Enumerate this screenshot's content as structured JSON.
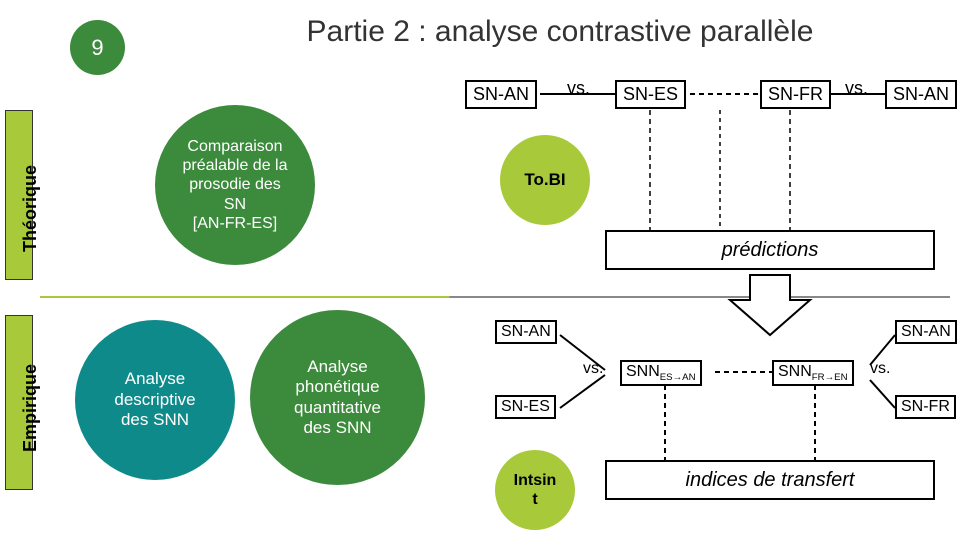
{
  "colors": {
    "darkgreen": "#3c8a3c",
    "limegreen": "#a8c93a",
    "teal": "#0f8a8a",
    "black": "#000000",
    "white": "#ffffff"
  },
  "page_number": "9",
  "title": "Partie 2 : analyse contrastive parallèle",
  "sidebar_labels": {
    "theorique": "Théorique",
    "empirique": "Empirique"
  },
  "circles": {
    "comparison": "Comparaison\npréalable de la\nprosodie des\nSN\n[AN-FR-ES]",
    "descriptive": "Analyse\ndescriptive\ndes SNN",
    "phonetic": "Analyse\nphonétique\nquantitative\ndes SNN",
    "tobi": "To.BI",
    "intsint": "Intsin\nt"
  },
  "top_row": {
    "sn_an_left": "SN-AN",
    "vs1": "vs.",
    "sn_es": "SN-ES",
    "sn_fr": "SN-FR",
    "vs2": "vs.",
    "sn_an_right": "SN-AN"
  },
  "predictions_label": "prédictions",
  "bottom_section": {
    "sn_an_top": "SN-AN",
    "sn_es": "SN-ES",
    "vs_left": "vs.",
    "snn_es_an": "SNN<sub>ES→AN</sub>",
    "snn_fr_en": "SNN<sub>FR→EN</sub>",
    "vs_right": "vs.",
    "sn_an_right": "SN-AN",
    "sn_fr": "SN-FR"
  },
  "transfer_label": "indices de transfert",
  "fonts": {
    "title_size": 30,
    "node_size": 18
  }
}
